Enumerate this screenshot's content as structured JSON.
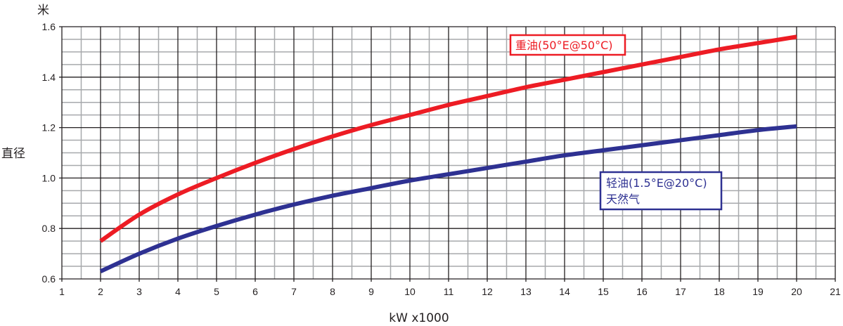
{
  "chart_data": {
    "type": "line",
    "title": "",
    "xlabel": "kW x1000",
    "ylabel": "直径",
    "yunit": "米",
    "xlim": [
      1,
      21
    ],
    "ylim": [
      0.6,
      1.6
    ],
    "xticks": [
      1,
      2,
      3,
      4,
      5,
      6,
      7,
      8,
      9,
      10,
      11,
      12,
      13,
      14,
      15,
      16,
      17,
      18,
      19,
      20,
      21
    ],
    "yticks": [
      0.6,
      0.8,
      1.0,
      1.2,
      1.4,
      1.6
    ],
    "ytick_labels": [
      "0.6",
      "0.8",
      "1.0",
      "1.2",
      "1.4",
      "1.6"
    ],
    "grid": true,
    "x": [
      2,
      3,
      4,
      5,
      6,
      7,
      8,
      9,
      10,
      11,
      12,
      13,
      14,
      15,
      16,
      17,
      18,
      19,
      20
    ],
    "series": [
      {
        "name": "重油(50°E@50°C)",
        "color": "#ed1c24",
        "values": [
          0.75,
          0.855,
          0.935,
          1.0,
          1.06,
          1.115,
          1.165,
          1.21,
          1.25,
          1.29,
          1.325,
          1.36,
          1.39,
          1.42,
          1.45,
          1.48,
          1.51,
          1.535,
          1.56
        ]
      },
      {
        "name": "轻油(1.5°E@20°C)",
        "name_line2": "天然气",
        "color": "#2e3192",
        "values": [
          0.63,
          0.7,
          0.76,
          0.81,
          0.855,
          0.895,
          0.93,
          0.96,
          0.99,
          1.015,
          1.04,
          1.065,
          1.09,
          1.11,
          1.13,
          1.15,
          1.17,
          1.19,
          1.205
        ]
      }
    ]
  }
}
